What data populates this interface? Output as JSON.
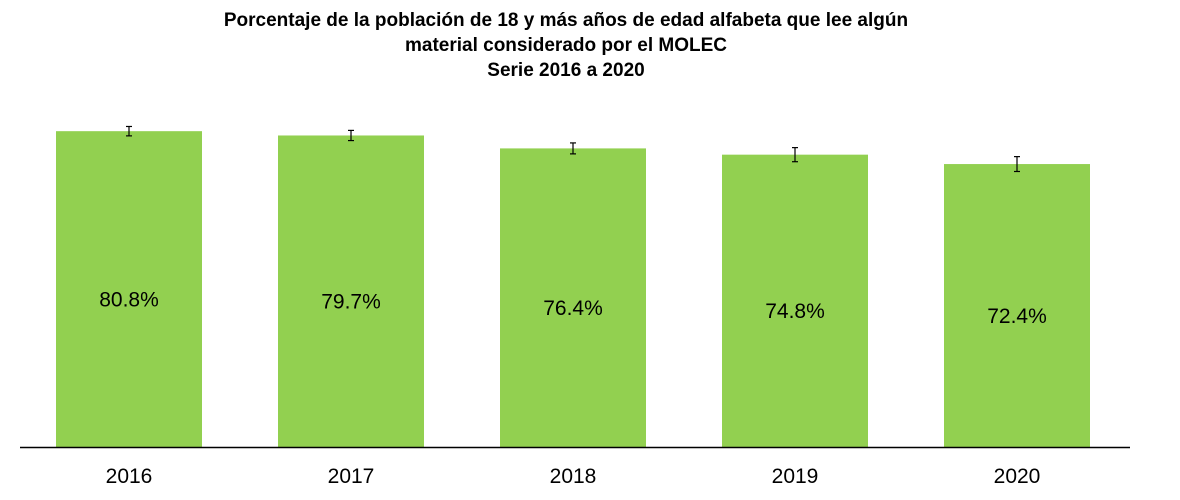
{
  "chart_data": {
    "type": "bar",
    "title_lines": [
      "Porcentaje de la población de 18 y más años de edad alfabeta que lee algún",
      "material considerado por el MOLEC",
      "Serie 2016 a 2020"
    ],
    "categories": [
      "2016",
      "2017",
      "2018",
      "2019",
      "2020"
    ],
    "values": [
      80.8,
      79.7,
      76.4,
      74.8,
      72.4
    ],
    "value_labels": [
      "80.8%",
      "79.7%",
      "76.4%",
      "74.8%",
      "72.4%"
    ],
    "error_bars": [
      [
        79.6,
        82.0
      ],
      [
        78.4,
        81.0
      ],
      [
        75.0,
        77.8
      ],
      [
        73.0,
        76.6
      ],
      [
        70.5,
        74.3
      ]
    ],
    "ylim": [
      0,
      81.1
    ],
    "xlabel": "",
    "ylabel": "",
    "grid": false,
    "legend": "none",
    "colors": {
      "bar": "#92d050",
      "error_bar": "#000000",
      "axis": "#000000"
    }
  }
}
